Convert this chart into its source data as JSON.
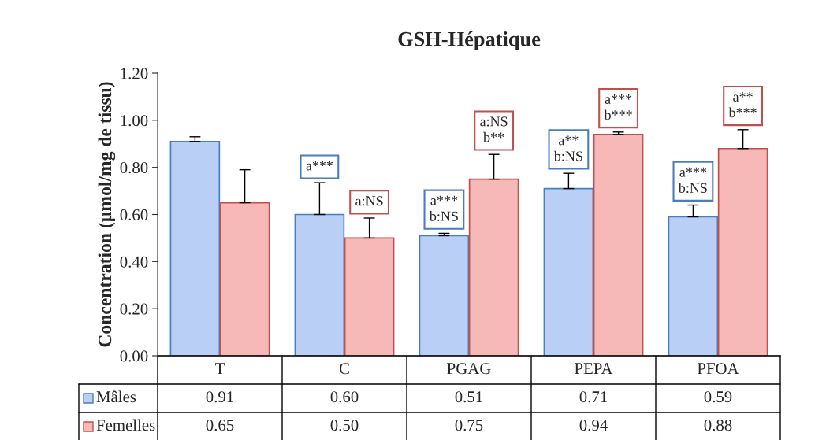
{
  "chart_data": {
    "type": "bar",
    "title": "GSH-Hépatique",
    "ylabel": "Concentration (µmol/mg de tissu)",
    "categories": [
      "T",
      "C",
      "PGAG",
      "PEPA",
      "PFOA"
    ],
    "series": [
      {
        "name": "Mâles",
        "color": "#b9cff5",
        "values": [
          0.91,
          0.6,
          0.51,
          0.71,
          0.59
        ],
        "value_labels": [
          "0.91",
          "0.60",
          "0.51",
          "0.71",
          "0.59"
        ],
        "errors": [
          [
            0.91,
            0.93
          ],
          [
            0.6,
            0.735
          ],
          [
            0.51,
            0.52
          ],
          [
            0.71,
            0.775
          ],
          [
            0.59,
            0.64
          ]
        ]
      },
      {
        "name": "Femelles",
        "color": "#f7b9b8",
        "values": [
          0.65,
          0.5,
          0.75,
          0.94,
          0.88
        ],
        "value_labels": [
          "0.65",
          "0.50",
          "0.75",
          "0.94",
          "0.88"
        ],
        "errors": [
          [
            0.65,
            0.79
          ],
          [
            0.5,
            0.585
          ],
          [
            0.75,
            0.855
          ],
          [
            0.94,
            0.95
          ],
          [
            0.88,
            0.96
          ]
        ]
      }
    ],
    "ylim": [
      0,
      1.2
    ],
    "yticks": [
      {
        "value": 0,
        "label": "0.00"
      },
      {
        "value": 0.2,
        "label": "0.20"
      },
      {
        "value": 0.4,
        "label": "0.40"
      },
      {
        "value": 0.6,
        "label": "0.60"
      },
      {
        "value": 0.8,
        "label": "0.80"
      },
      {
        "value": 1.0,
        "label": "1.00"
      },
      {
        "value": 1.2,
        "label": "1.20"
      }
    ],
    "grid": false,
    "legend": "bottom",
    "annotations": [
      "a***",
      "a:NS",
      "a***\nb:NS",
      "a:NS\nb**",
      "a**\nb:NS",
      "a***\nb***",
      "a***\nb:NS",
      "a**\nb***"
    ]
  }
}
